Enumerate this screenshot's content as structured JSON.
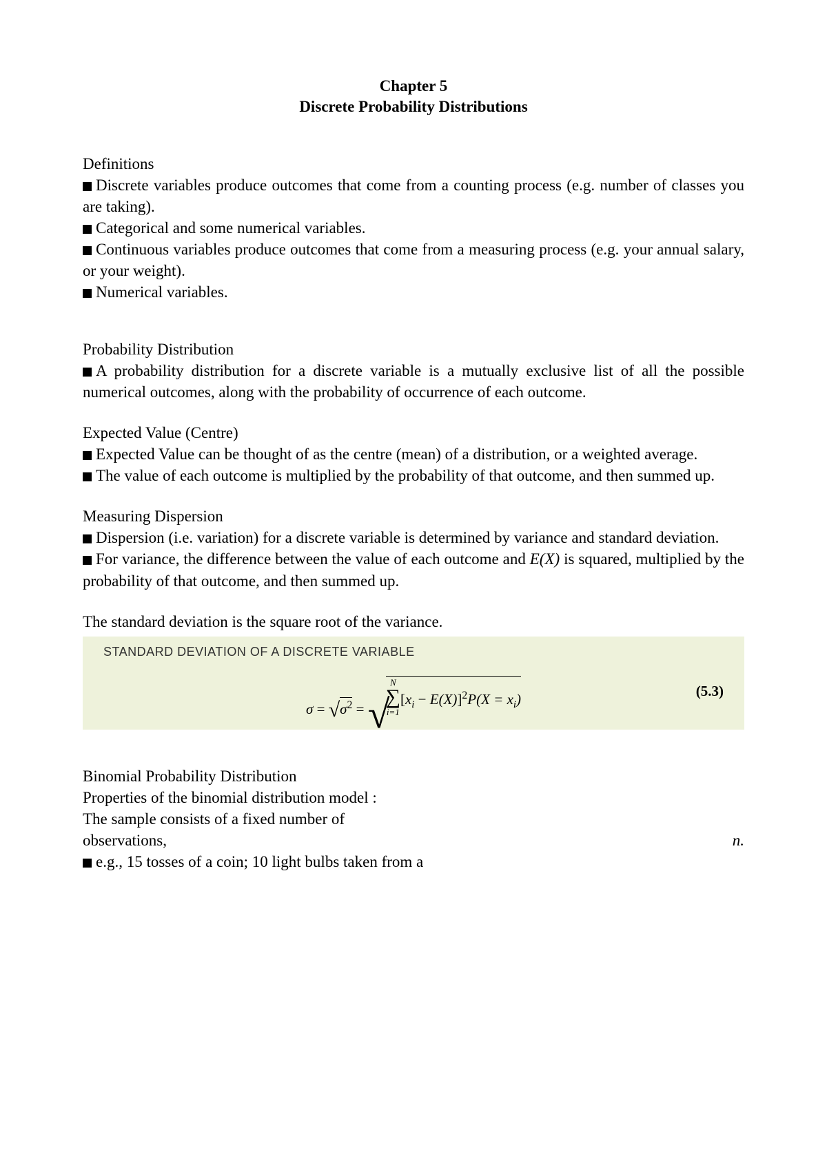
{
  "title": {
    "line1": "Chapter 5",
    "line2": "Discrete Probability Distributions"
  },
  "sections": {
    "definitions": {
      "heading": "Definitions",
      "bullets": [
        "Discrete variables produce outcomes that come from a counting process (e.g. number of classes you are taking).",
        "Categorical and some numerical variables.",
        "Continuous variables produce outcomes that come from a measuring process (e.g. your annual salary, or your weight).",
        "Numerical variables."
      ]
    },
    "probability_distribution": {
      "heading": "Probability Distribution",
      "bullets": [
        "A probability distribution for a discrete variable is a mutually exclusive list of all the possible numerical outcomes, along with the probability of occurrence of each outcome."
      ]
    },
    "expected_value": {
      "heading": "Expected Value (Centre)",
      "bullets": [
        "Expected Value can be thought of as the centre (mean) of a distribution, or a weighted average.",
        "The value of each outcome is multiplied by the probability of that outcome, and then summed up."
      ]
    },
    "dispersion": {
      "heading": "Measuring Dispersion",
      "bullets": [
        "Dispersion (i.e. variation) for a discrete variable is determined by variance and standard deviation."
      ],
      "bullet_ex": {
        "pre": "For variance, the difference between the value of each outcome and ",
        "ex": "E(X)",
        "post": " is squared, multiplied by the probability of that outcome, and then summed up."
      },
      "std_text": "The standard deviation is the square root of the variance."
    },
    "formula": {
      "title": "STANDARD DEVIATION OF A DISCRETE VARIABLE",
      "number": "(5.3)",
      "box_background": "#eef2db",
      "sigma": "σ",
      "sum_upper": "N",
      "sum_lower": "i=1",
      "term_x": "x",
      "term_sub": "i",
      "term_E": "E(X)",
      "term_P": "P(X = x",
      "term_Psub": "i",
      "term_close": ")"
    },
    "binomial": {
      "heading": "Binomial Probability Distribution",
      "line2": "Properties of the binomial distribution model :",
      "line3a": "The sample consists of a fixed number of",
      "line3b": "observations,",
      "line3_right": "n.",
      "bullet": "e.g., 15 tosses of a coin; 10 light bulbs taken from a"
    }
  }
}
